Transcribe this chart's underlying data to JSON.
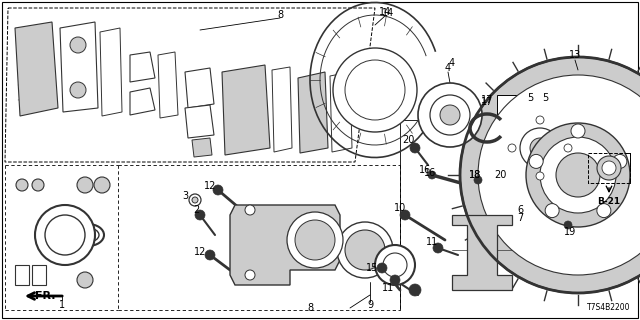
{
  "background_color": "#ffffff",
  "diagram_code": "T7S4B2200",
  "figsize": [
    6.4,
    3.2
  ],
  "dpi": 100
}
